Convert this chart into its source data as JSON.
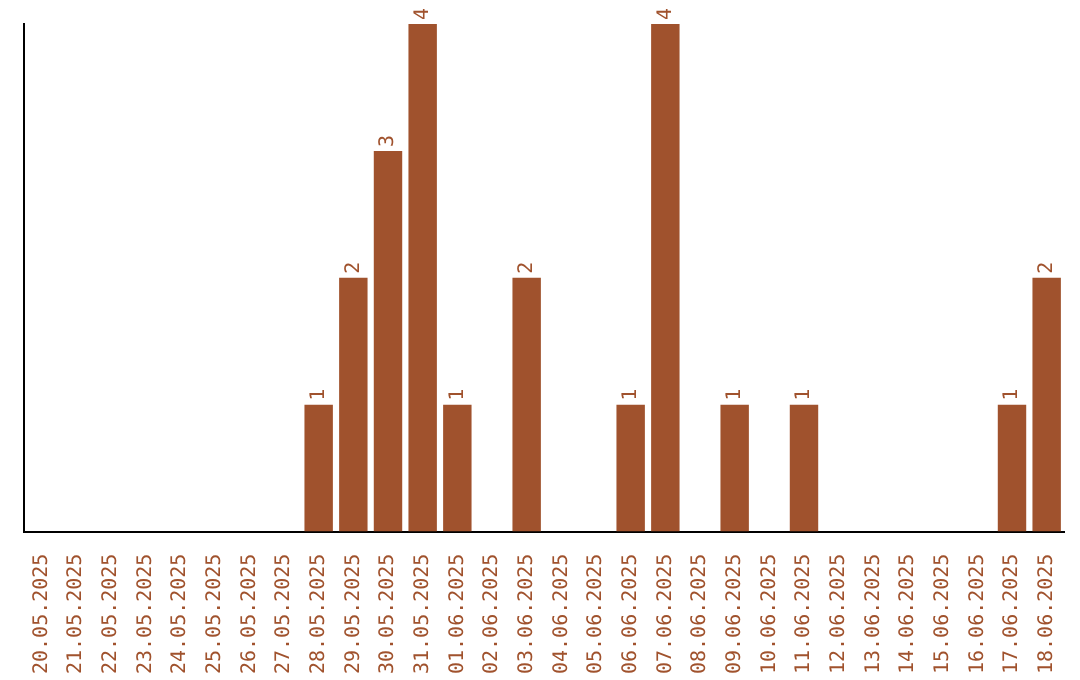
{
  "chart_data": {
    "type": "bar",
    "categories": [
      "20.05.2025",
      "21.05.2025",
      "22.05.2025",
      "23.05.2025",
      "24.05.2025",
      "25.05.2025",
      "26.05.2025",
      "27.05.2025",
      "28.05.2025",
      "29.05.2025",
      "30.05.2025",
      "31.05.2025",
      "01.06.2025",
      "02.06.2025",
      "03.06.2025",
      "04.06.2025",
      "05.06.2025",
      "06.06.2025",
      "07.06.2025",
      "08.06.2025",
      "09.06.2025",
      "10.06.2025",
      "11.06.2025",
      "12.06.2025",
      "13.06.2025",
      "14.06.2025",
      "15.06.2025",
      "16.06.2025",
      "17.06.2025",
      "18.06.2025"
    ],
    "values": [
      0,
      0,
      0,
      0,
      0,
      0,
      0,
      0,
      1,
      2,
      3,
      4,
      1,
      0,
      2,
      0,
      0,
      1,
      4,
      0,
      1,
      0,
      1,
      0,
      0,
      0,
      0,
      0,
      1,
      2
    ],
    "value_labels": [
      null,
      null,
      null,
      null,
      null,
      null,
      null,
      null,
      "1",
      "2",
      "3",
      "4",
      "1",
      null,
      "2",
      null,
      null,
      "1",
      "4",
      null,
      "1",
      null,
      "1",
      null,
      null,
      null,
      null,
      null,
      "1",
      "2"
    ],
    "color": "#a0522d",
    "grid": false,
    "legend": false,
    "tick_labels": "x"
  }
}
